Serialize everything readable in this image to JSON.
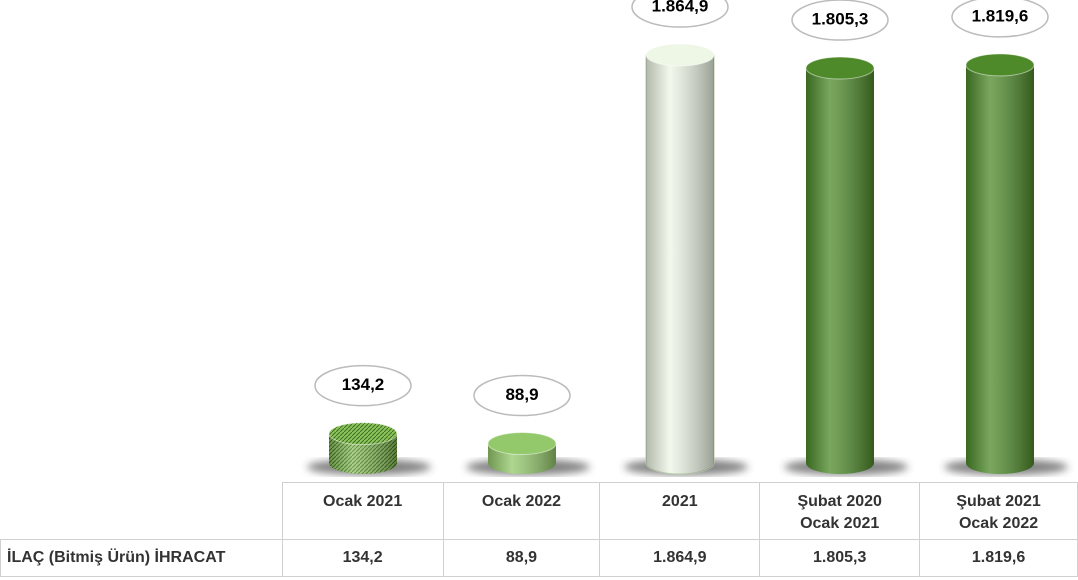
{
  "chart_data": {
    "type": "bar",
    "categories": [
      "Ocak  2021",
      "Ocak  2022",
      "2021",
      "Şubat 2020\nOcak 2021",
      "Şubat 2021\nOcak 2022"
    ],
    "series": [
      {
        "name": "İLAÇ (Bitmiş Ürün) İHRACAT",
        "values": [
          134.2,
          88.9,
          1864.9,
          1805.3,
          1819.6
        ],
        "value_labels": [
          "134,2",
          "88,9",
          "1.864,9",
          "1.805,3",
          "1.819,6"
        ],
        "colors": [
          "#7fb850",
          "#94c96b",
          "#eef6e6",
          "#4e8a2a",
          "#4e8a2a"
        ]
      }
    ]
  }
}
